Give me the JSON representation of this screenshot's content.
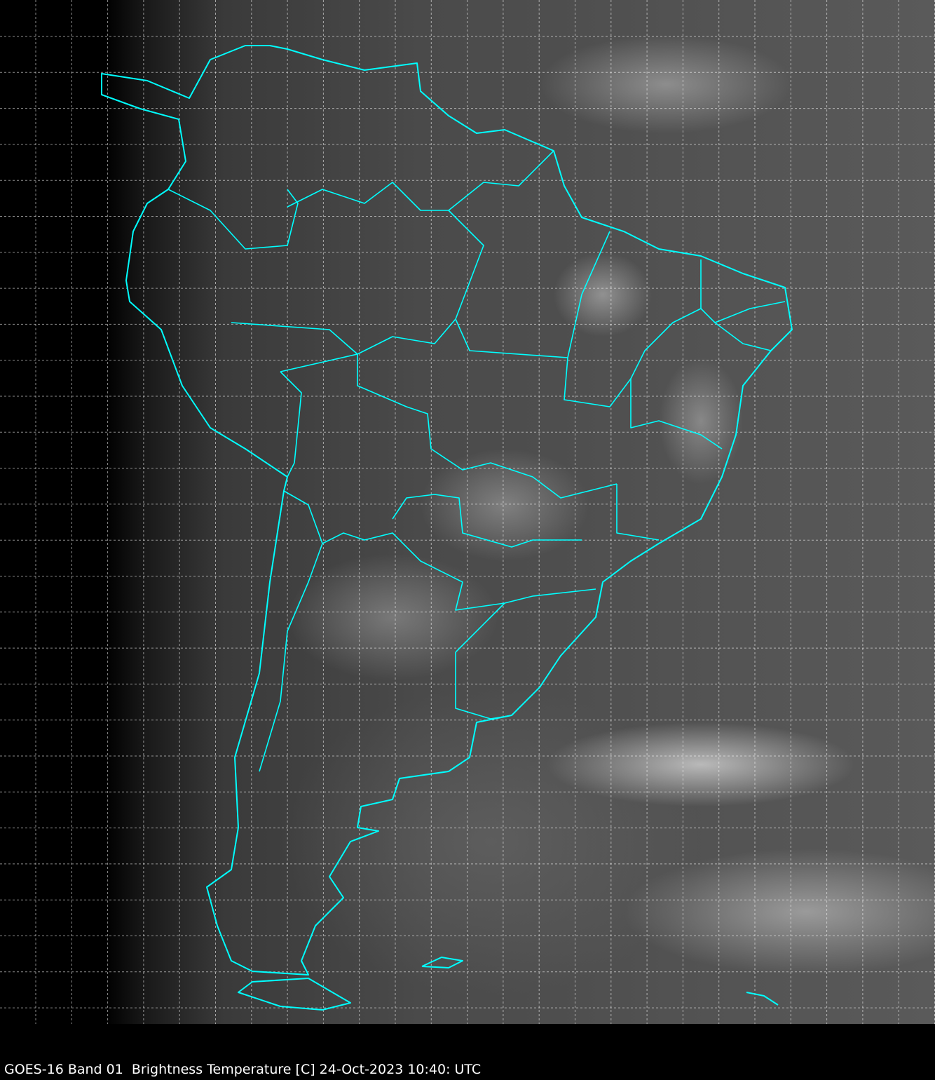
{
  "caption": "GOES-16 Band 01  Brightness Temperature [C] 24-Oct-2023 10:40: UTC",
  "colors": {
    "coastline": "#00ffff",
    "grid": "#ffffff",
    "background": "#000000"
  },
  "map": {
    "region": "South America",
    "overlay": [
      "coastlines",
      "political-borders",
      "lat-lon-grid"
    ]
  }
}
